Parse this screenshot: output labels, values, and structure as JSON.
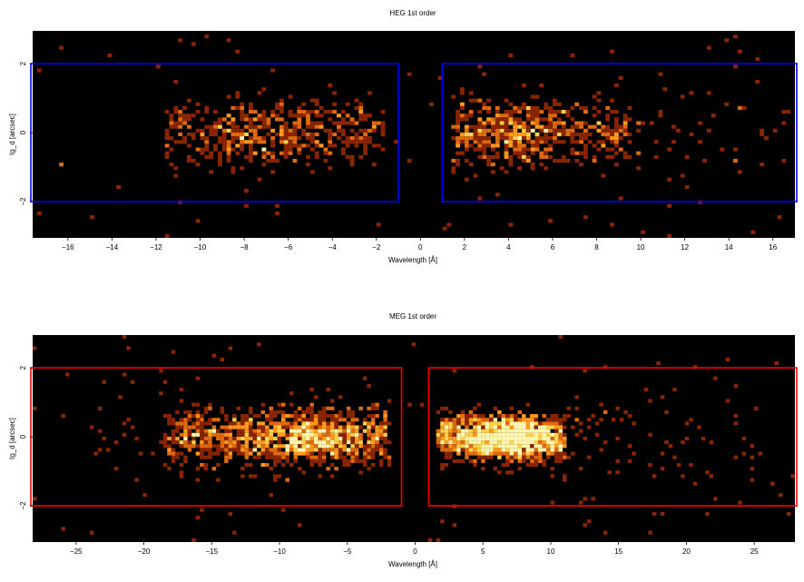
{
  "chart_data": [
    {
      "type": "heatmap",
      "title": "HEG 1st order",
      "xlabel": "Wavelength [Å]",
      "ylabel": "tg_d [arcsec]",
      "xlim": [
        -17.6,
        17.0
      ],
      "ylim": [
        -3.05,
        2.95
      ],
      "xticks": [
        -16,
        -14,
        -12,
        -10,
        -8,
        -6,
        -4,
        -2,
        0,
        2,
        4,
        6,
        8,
        10,
        12,
        14,
        16
      ],
      "xtick_labels": [
        "−16",
        "−14",
        "−12",
        "−10",
        "−8",
        "−6",
        "−4",
        "−2",
        "0",
        "2",
        "4",
        "6",
        "8",
        "10",
        "12",
        "14",
        "16"
      ],
      "yticks": [
        -2,
        0,
        2
      ],
      "ytick_labels": [
        "−2",
        "0",
        "2"
      ],
      "background": "#000000",
      "colormap": [
        "#8b2500",
        "#e06a10",
        "#ff9a1e",
        "#ffd24a",
        "#fff6b0"
      ],
      "extraction_regions": {
        "color": "#0000ff",
        "boxes": [
          {
            "x": [
              -18.0,
              -1.0
            ],
            "y": [
              -2.0,
              2.0
            ]
          },
          {
            "x": [
              1.0,
              17.5
            ],
            "y": [
              -2.0,
              2.0
            ]
          }
        ]
      },
      "density": {
        "cell_x": 0.2,
        "cell_y": 0.11,
        "seed": 11,
        "components": [
          {
            "x": [
              -11.6,
              -1.6
            ],
            "y_sigma": 0.48,
            "count": 520,
            "peak_x": -7.0
          },
          {
            "x": [
              1.5,
              9.5
            ],
            "y_sigma": 0.45,
            "count": 600,
            "peak_x": 3.8
          },
          {
            "x": [
              9.5,
              16.5
            ],
            "y_sigma": 0.75,
            "count": 45,
            "peak_x": 11.0
          }
        ],
        "background_count": 90
      }
    },
    {
      "type": "heatmap",
      "title": "MEG 1st order",
      "xlabel": "Wavelength [Å]",
      "ylabel": "tg_d [arcsec]",
      "xlim": [
        -28.2,
        28.0
      ],
      "ylim": [
        -3.05,
        2.95
      ],
      "xticks": [
        -25,
        -20,
        -15,
        -10,
        -5,
        0,
        5,
        10,
        15,
        20,
        25
      ],
      "xtick_labels": [
        "−25",
        "−20",
        "−15",
        "−10",
        "−5",
        "0",
        "5",
        "10",
        "15",
        "20",
        "25"
      ],
      "yticks": [
        -2,
        0,
        2
      ],
      "ytick_labels": [
        "−2",
        "0",
        "2"
      ],
      "background": "#000000",
      "colormap": [
        "#8b2500",
        "#e06a10",
        "#ff9a1e",
        "#ffd24a",
        "#fff6b0"
      ],
      "extraction_regions": {
        "color": "#ff0000",
        "boxes": [
          {
            "x": [
              -29.0,
              -1.0
            ],
            "y": [
              -2.0,
              2.0
            ]
          },
          {
            "x": [
              1.0,
              29.0
            ],
            "y": [
              -2.0,
              2.0
            ]
          }
        ]
      },
      "density": {
        "cell_x": 0.3,
        "cell_y": 0.11,
        "seed": 29,
        "components": [
          {
            "x": [
              -18.5,
              -2.0
            ],
            "y_sigma": 0.4,
            "count": 1300,
            "peak_x": -8.0
          },
          {
            "x": [
              1.7,
              11.0
            ],
            "y_sigma": 0.32,
            "count": 1500,
            "peak_x": 7.0
          },
          {
            "x": [
              11.0,
              25.0
            ],
            "y_sigma": 0.8,
            "count": 70,
            "peak_x": 12.0
          },
          {
            "x": [
              -24.0,
              -15.0
            ],
            "y_sigma": 0.9,
            "count": 40,
            "peak_x": -16.0
          }
        ],
        "background_count": 110
      }
    }
  ]
}
